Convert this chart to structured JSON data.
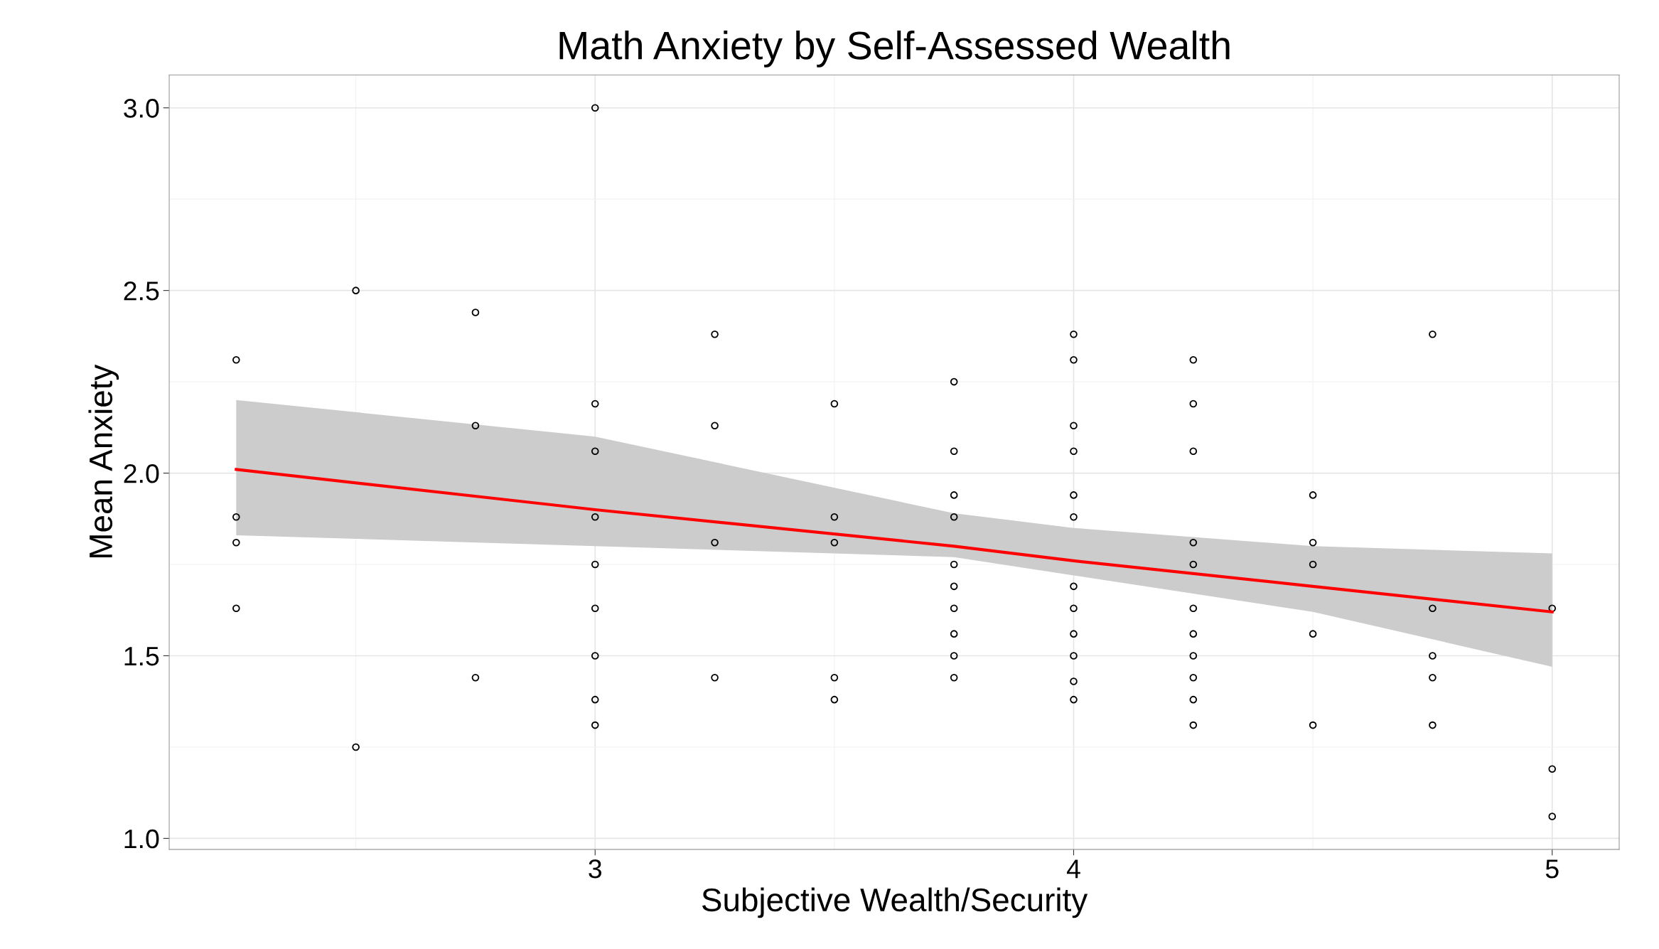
{
  "chart_data": {
    "type": "scatter",
    "title": "Math Anxiety by Self-Assessed Wealth",
    "xlabel": "Subjective Wealth/Security",
    "ylabel": "Mean Anxiety",
    "xlim": [
      2.11,
      5.14
    ],
    "ylim": [
      0.97,
      3.09
    ],
    "xticks": [
      3,
      4,
      5
    ],
    "yticks": [
      {
        "value": 1.0,
        "label": "1.0"
      },
      {
        "value": 1.5,
        "label": "1.5"
      },
      {
        "value": 2.0,
        "label": "2.0"
      },
      {
        "value": 2.5,
        "label": "2.5"
      },
      {
        "value": 3.0,
        "label": "3.0"
      }
    ],
    "grid": true,
    "series": [
      {
        "marker": "circle",
        "color": "#000000",
        "x": [
          2.25,
          2.25,
          2.25,
          2.25,
          2.5,
          2.5,
          2.75,
          2.75,
          2.75,
          3,
          3,
          3,
          3,
          3,
          3,
          3,
          3,
          3,
          3.25,
          3.25,
          3.25,
          3.25,
          3.5,
          3.5,
          3.5,
          3.5,
          3.5,
          3.75,
          3.75,
          3.75,
          3.75,
          3.75,
          3.75,
          3.75,
          3.75,
          3.75,
          3.75,
          4,
          4,
          4,
          4,
          4,
          4,
          4,
          4,
          4,
          4,
          4,
          4,
          4.25,
          4.25,
          4.25,
          4.25,
          4.25,
          4.25,
          4.25,
          4.25,
          4.25,
          4.25,
          4.25,
          4.5,
          4.5,
          4.5,
          4.5,
          4.5,
          4.75,
          4.75,
          4.75,
          4.75,
          4.75,
          5,
          5,
          5
        ],
        "values": [
          2.31,
          1.88,
          1.81,
          1.63,
          2.5,
          1.25,
          2.44,
          2.13,
          1.44,
          3.0,
          2.19,
          2.06,
          1.88,
          1.75,
          1.63,
          1.5,
          1.38,
          1.31,
          2.38,
          2.13,
          1.81,
          1.44,
          2.19,
          1.88,
          1.81,
          1.44,
          1.38,
          2.25,
          2.06,
          1.94,
          1.88,
          1.75,
          1.69,
          1.63,
          1.56,
          1.5,
          1.44,
          2.38,
          2.31,
          2.13,
          2.06,
          1.94,
          1.88,
          1.69,
          1.63,
          1.56,
          1.5,
          1.43,
          1.38,
          2.31,
          2.19,
          2.06,
          1.81,
          1.75,
          1.63,
          1.56,
          1.5,
          1.44,
          1.38,
          1.31,
          1.94,
          1.81,
          1.75,
          1.56,
          1.31,
          2.38,
          1.63,
          1.5,
          1.44,
          1.31,
          1.63,
          1.19,
          1.06
        ]
      },
      {
        "type": "line",
        "marker": "none",
        "color": "#ff0000",
        "x": [
          2.25,
          3,
          3.75,
          4,
          4.5,
          5
        ],
        "values": [
          2.01,
          1.9,
          1.8,
          1.76,
          1.69,
          1.62
        ],
        "lower": [
          1.83,
          1.8,
          1.77,
          1.72,
          1.62,
          1.47
        ],
        "upper": [
          2.2,
          2.1,
          1.89,
          1.85,
          1.8,
          1.78
        ]
      }
    ]
  }
}
